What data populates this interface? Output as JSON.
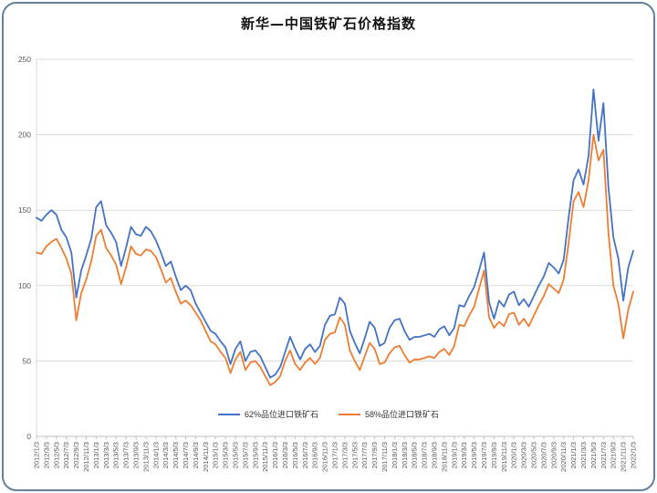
{
  "window": {
    "border_color": "#64809c",
    "background": "#ffffff"
  },
  "chart_data": {
    "type": "line",
    "title": "新华—中国铁矿石价格指数",
    "xlabel": "",
    "ylabel": "",
    "ylim": [
      0,
      250
    ],
    "y_ticks": [
      0,
      50,
      100,
      150,
      200,
      250
    ],
    "grid": "horizontal",
    "legend_position": "bottom-center",
    "x_labels": [
      "2012/1/3",
      "2012/3/3",
      "2012/5/3",
      "2012/7/3",
      "2012/9/3",
      "2012/11/3",
      "2013/1/3",
      "2013/3/3",
      "2013/5/3",
      "2013/7/3",
      "2013/9/3",
      "2013/11/3",
      "2014/1/3",
      "2014/3/3",
      "2014/5/3",
      "2014/7/3",
      "2014/9/3",
      "2014/11/3",
      "2015/1/3",
      "2015/3/3",
      "2015/5/3",
      "2015/7/3",
      "2015/9/3",
      "2015/11/3",
      "2016/1/3",
      "2016/3/3",
      "2016/5/3",
      "2016/7/3",
      "2016/9/3",
      "2016/11/3",
      "2017/1/3",
      "2017/3/3",
      "2017/5/3",
      "2017/7/3",
      "2017/9/3",
      "2017/11/3",
      "2018/1/3",
      "2018/3/3",
      "2018/5/3",
      "2018/7/3",
      "2018/9/3",
      "2018/11/3",
      "2019/1/3",
      "2019/3/3",
      "2019/5/3",
      "2019/7/3",
      "2019/9/3",
      "2019/11/3",
      "2020/1/3",
      "2020/3/3",
      "2020/5/3",
      "2020/7/3",
      "2020/9/3",
      "2020/11/3",
      "2021/1/3",
      "2021/3/3",
      "2021/5/3",
      "2021/7/3",
      "2021/9/3",
      "2021/11/3",
      "2022/1/3"
    ],
    "series": [
      {
        "name": "62%品位进口铁矿石",
        "color": "#4472C4",
        "values": [
          145,
          143,
          147,
          150,
          147,
          137,
          132,
          122,
          92,
          110,
          120,
          131,
          152,
          156,
          140,
          135,
          129,
          113,
          125,
          139,
          134,
          133,
          139,
          136,
          130,
          122,
          113,
          116,
          106,
          97,
          100,
          97,
          88,
          82,
          76,
          70,
          68,
          63,
          59,
          48,
          58,
          63,
          50,
          56,
          57,
          53,
          46,
          39,
          41,
          46,
          56,
          66,
          58,
          51,
          58,
          61,
          56,
          60,
          74,
          80,
          81,
          92,
          88,
          70,
          62,
          55,
          65,
          76,
          72,
          60,
          62,
          72,
          77,
          78,
          70,
          64,
          66,
          66,
          67,
          68,
          66,
          71,
          73,
          67,
          72,
          87,
          86,
          93,
          99,
          110,
          122,
          89,
          78,
          90,
          86,
          94,
          96,
          87,
          91,
          86,
          93,
          100,
          106,
          115,
          112,
          108,
          117,
          145,
          170,
          177,
          167,
          186,
          230,
          196,
          221,
          165,
          132,
          118,
          90,
          112,
          123
        ]
      },
      {
        "name": "58%品位进口铁矿石",
        "color": "#ED7D31",
        "values": [
          122,
          121,
          126,
          129,
          131,
          125,
          118,
          108,
          77,
          95,
          104,
          116,
          133,
          137,
          125,
          120,
          114,
          101,
          112,
          126,
          121,
          120,
          124,
          123,
          119,
          111,
          102,
          105,
          96,
          88,
          90,
          87,
          82,
          77,
          70,
          63,
          61,
          56,
          52,
          42,
          51,
          56,
          44,
          49,
          50,
          46,
          40,
          34,
          36,
          40,
          50,
          57,
          48,
          44,
          49,
          52,
          48,
          52,
          64,
          68,
          69,
          79,
          74,
          57,
          50,
          44,
          53,
          62,
          58,
          48,
          49,
          55,
          59,
          60,
          54,
          49,
          51,
          51,
          52,
          53,
          52,
          56,
          58,
          54,
          60,
          74,
          73,
          80,
          86,
          98,
          110,
          79,
          72,
          76,
          73,
          81,
          82,
          74,
          78,
          73,
          80,
          87,
          93,
          101,
          98,
          95,
          104,
          128,
          156,
          162,
          152,
          170,
          200,
          183,
          190,
          135,
          100,
          88,
          65,
          84,
          96
        ]
      }
    ],
    "colors": {
      "gridline": "#d9d9d9",
      "axis_line": "#bfbfbf",
      "tick_label": "#595959",
      "title": "#111111"
    }
  }
}
